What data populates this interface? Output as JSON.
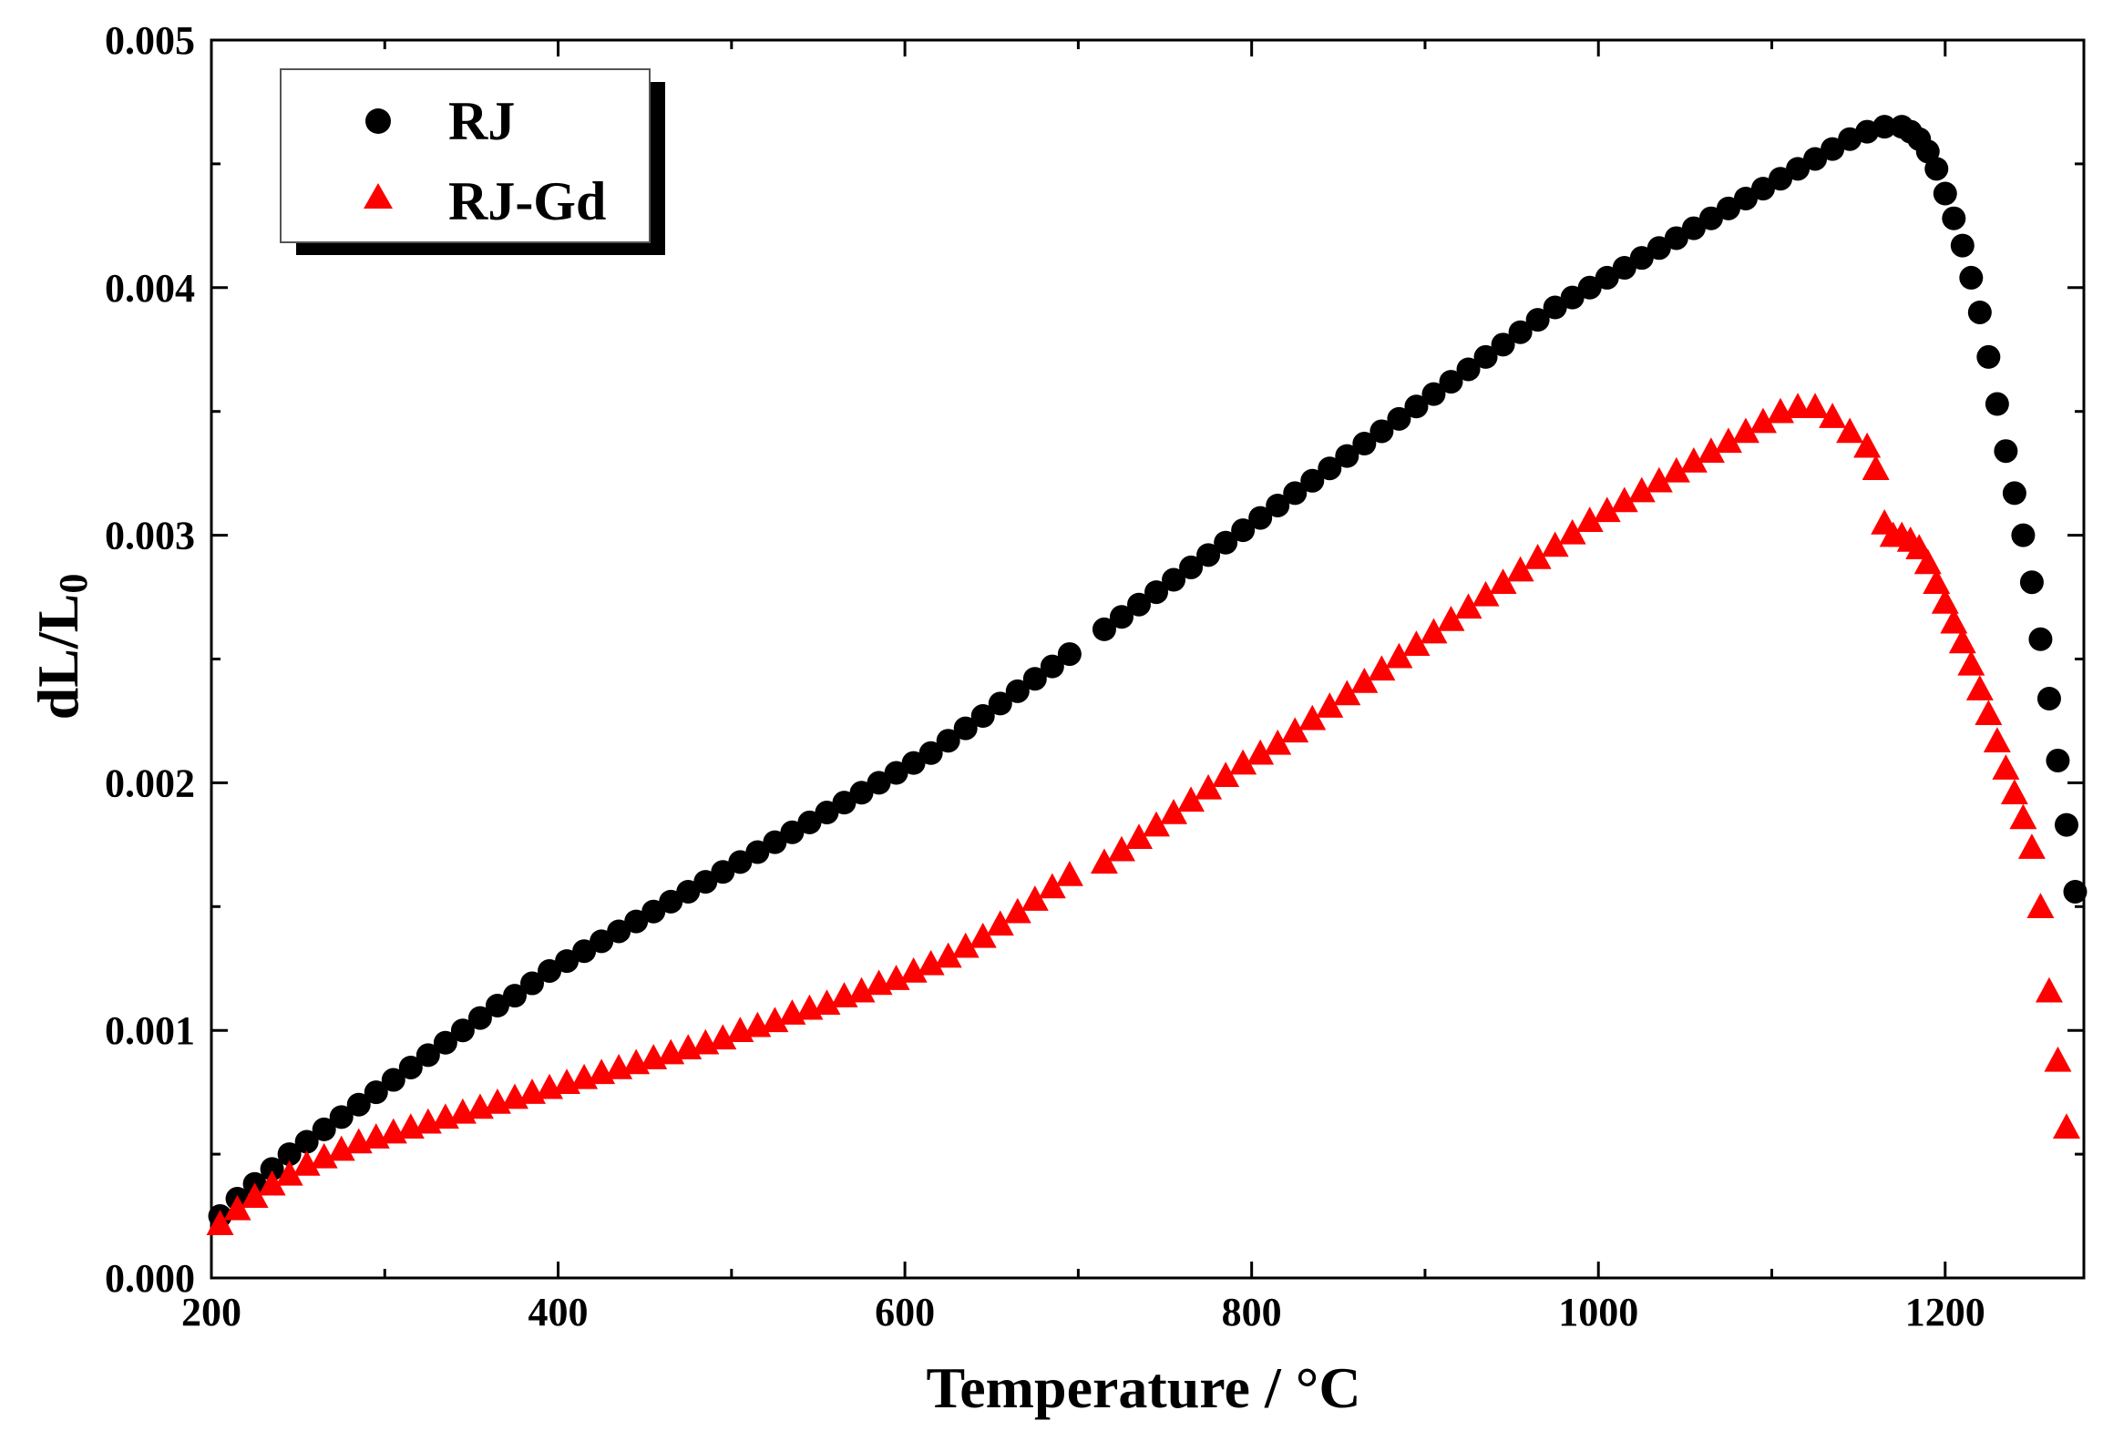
{
  "chart_data": {
    "type": "scatter",
    "xlabel": "Temperature / °C",
    "ylabel_main": "dL/L",
    "ylabel_sub": "0",
    "xlim": [
      200,
      1280
    ],
    "ylim": [
      0.0,
      0.005
    ],
    "x_ticks": [
      200,
      400,
      600,
      800,
      1000,
      1200
    ],
    "x_tick_labels": [
      "200",
      "400",
      "600",
      "800",
      "1000",
      "1200"
    ],
    "y_ticks": [
      0.0,
      0.001,
      0.002,
      0.003,
      0.004,
      0.005
    ],
    "y_tick_labels": [
      "0.000",
      "0.001",
      "0.002",
      "0.003",
      "0.004",
      "0.005"
    ],
    "grid": false,
    "legend_position": "top-left",
    "series": [
      {
        "name": "RJ",
        "marker": "circle",
        "color": "#000000",
        "x": [
          205,
          215,
          225,
          235,
          245,
          255,
          265,
          275,
          285,
          295,
          305,
          315,
          325,
          335,
          345,
          355,
          365,
          375,
          385,
          395,
          405,
          415,
          425,
          435,
          445,
          455,
          465,
          475,
          485,
          495,
          505,
          515,
          525,
          535,
          545,
          555,
          565,
          575,
          585,
          595,
          605,
          615,
          625,
          635,
          645,
          655,
          665,
          675,
          685,
          695,
          715,
          725,
          735,
          745,
          755,
          765,
          775,
          785,
          795,
          805,
          815,
          825,
          835,
          845,
          855,
          865,
          875,
          885,
          895,
          905,
          915,
          925,
          935,
          945,
          955,
          965,
          975,
          985,
          995,
          1005,
          1015,
          1025,
          1035,
          1045,
          1055,
          1065,
          1075,
          1085,
          1095,
          1105,
          1115,
          1125,
          1135,
          1145,
          1155,
          1165,
          1175,
          1180,
          1185,
          1190,
          1195,
          1200,
          1205,
          1210,
          1215,
          1220,
          1225,
          1230,
          1235,
          1240,
          1245,
          1250,
          1255,
          1260,
          1265,
          1270,
          1275
        ],
        "y": [
          0.00025,
          0.00032,
          0.00038,
          0.00044,
          0.0005,
          0.00055,
          0.0006,
          0.00065,
          0.0007,
          0.00075,
          0.0008,
          0.00085,
          0.0009,
          0.00095,
          0.001,
          0.00105,
          0.0011,
          0.00114,
          0.00119,
          0.00124,
          0.00128,
          0.00132,
          0.00136,
          0.0014,
          0.00144,
          0.00148,
          0.00152,
          0.00156,
          0.0016,
          0.00164,
          0.00168,
          0.00172,
          0.00176,
          0.0018,
          0.00184,
          0.00188,
          0.00192,
          0.00196,
          0.002,
          0.00204,
          0.00208,
          0.00212,
          0.00217,
          0.00222,
          0.00227,
          0.00232,
          0.00237,
          0.00242,
          0.00247,
          0.00252,
          0.00262,
          0.00267,
          0.00272,
          0.00277,
          0.00282,
          0.00287,
          0.00292,
          0.00297,
          0.00302,
          0.00307,
          0.00312,
          0.00317,
          0.00322,
          0.00327,
          0.00332,
          0.00337,
          0.00342,
          0.00347,
          0.00352,
          0.00357,
          0.00362,
          0.00367,
          0.00372,
          0.00377,
          0.00382,
          0.00387,
          0.00392,
          0.00396,
          0.004,
          0.00404,
          0.00408,
          0.00412,
          0.00416,
          0.0042,
          0.00424,
          0.00428,
          0.00432,
          0.00436,
          0.0044,
          0.00444,
          0.00448,
          0.00452,
          0.00456,
          0.0046,
          0.00463,
          0.00465,
          0.00465,
          0.00463,
          0.0046,
          0.00455,
          0.00448,
          0.00438,
          0.00428,
          0.00417,
          0.00404,
          0.0039,
          0.00372,
          0.00353,
          0.00334,
          0.00317,
          0.003,
          0.00281,
          0.00258,
          0.00234,
          0.00209,
          0.00183,
          0.00156
        ]
      },
      {
        "name": "RJ-Gd",
        "marker": "triangle",
        "color": "#ff0000",
        "x": [
          205,
          215,
          225,
          235,
          245,
          255,
          265,
          275,
          285,
          295,
          305,
          315,
          325,
          335,
          345,
          355,
          365,
          375,
          385,
          395,
          405,
          415,
          425,
          435,
          445,
          455,
          465,
          475,
          485,
          495,
          505,
          515,
          525,
          535,
          545,
          555,
          565,
          575,
          585,
          595,
          605,
          615,
          625,
          635,
          645,
          655,
          665,
          675,
          685,
          695,
          715,
          725,
          735,
          745,
          755,
          765,
          775,
          785,
          795,
          805,
          815,
          825,
          835,
          845,
          855,
          865,
          875,
          885,
          895,
          905,
          915,
          925,
          935,
          945,
          955,
          965,
          975,
          985,
          995,
          1005,
          1015,
          1025,
          1035,
          1045,
          1055,
          1065,
          1075,
          1085,
          1095,
          1105,
          1115,
          1125,
          1135,
          1145,
          1155,
          1160,
          1165,
          1170,
          1175,
          1180,
          1185,
          1190,
          1195,
          1200,
          1205,
          1210,
          1215,
          1220,
          1225,
          1230,
          1235,
          1240,
          1245,
          1250,
          1255,
          1260,
          1265,
          1270
        ],
        "y": [
          0.00022,
          0.00028,
          0.00033,
          0.00038,
          0.00042,
          0.00046,
          0.00049,
          0.00052,
          0.00055,
          0.00057,
          0.00059,
          0.00061,
          0.00063,
          0.00065,
          0.00067,
          0.00069,
          0.00071,
          0.00073,
          0.00075,
          0.00077,
          0.00079,
          0.00081,
          0.00083,
          0.00085,
          0.00087,
          0.00089,
          0.00091,
          0.00093,
          0.00095,
          0.00097,
          0.001,
          0.00102,
          0.00104,
          0.00107,
          0.00109,
          0.00111,
          0.00114,
          0.00116,
          0.00119,
          0.00121,
          0.00124,
          0.00127,
          0.0013,
          0.00134,
          0.00138,
          0.00143,
          0.00148,
          0.00153,
          0.00158,
          0.00163,
          0.00168,
          0.00173,
          0.00178,
          0.00183,
          0.00188,
          0.00193,
          0.00198,
          0.00203,
          0.00208,
          0.00212,
          0.00216,
          0.00221,
          0.00226,
          0.00231,
          0.00236,
          0.00241,
          0.00246,
          0.00251,
          0.00256,
          0.00261,
          0.00266,
          0.00271,
          0.00276,
          0.00281,
          0.00286,
          0.00291,
          0.00296,
          0.00301,
          0.00306,
          0.0031,
          0.00314,
          0.00318,
          0.00322,
          0.00326,
          0.0033,
          0.00334,
          0.00338,
          0.00342,
          0.00346,
          0.0035,
          0.00352,
          0.00352,
          0.00348,
          0.00342,
          0.00336,
          0.00327,
          0.00305,
          0.003,
          0.003,
          0.00298,
          0.00295,
          0.00289,
          0.00281,
          0.00273,
          0.00265,
          0.00257,
          0.00248,
          0.00238,
          0.00228,
          0.00217,
          0.00206,
          0.00196,
          0.00186,
          0.00174,
          0.0015,
          0.00116,
          0.00088,
          0.00061
        ]
      }
    ]
  }
}
